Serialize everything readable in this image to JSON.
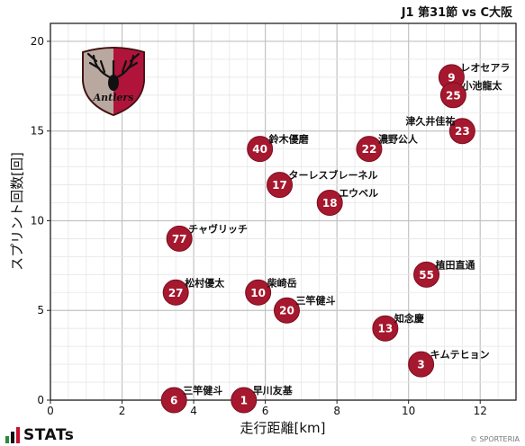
{
  "header": {
    "title": "J1 第31節 vs C大阪"
  },
  "footer": {
    "brand": "STATs",
    "copyright": "© SPORTERIA"
  },
  "colors": {
    "marker": "#a5182e",
    "marker_edge": "#7a0f20",
    "grid": "#d4d4d4",
    "stats_green": "#2a8a3a",
    "stats_red": "#c8102e"
  },
  "logo": {
    "text": "Antlers",
    "icon": "deer-antlers-crest"
  },
  "chart_data": {
    "type": "scatter",
    "xlabel": "走行距離[km]",
    "ylabel": "スプリント回数[回]",
    "xlim": [
      0,
      13
    ],
    "ylim": [
      0,
      21
    ],
    "xticks": [
      0,
      2,
      4,
      6,
      8,
      10,
      12
    ],
    "yticks": [
      0,
      5,
      10,
      15,
      20
    ],
    "grid": true,
    "points": [
      {
        "number": "9",
        "name": "レオセアラ",
        "x": 11.2,
        "y": 18
      },
      {
        "number": "25",
        "name": "小池龍太",
        "x": 11.25,
        "y": 17
      },
      {
        "number": "23",
        "name": "津久井佳祐",
        "x": 11.5,
        "y": 15
      },
      {
        "number": "22",
        "name": "濃野公人",
        "x": 8.9,
        "y": 14
      },
      {
        "number": "40",
        "name": "鈴木優磨",
        "x": 5.85,
        "y": 14
      },
      {
        "number": "17",
        "name": "ターレスブレーネル",
        "x": 6.4,
        "y": 12
      },
      {
        "number": "18",
        "name": "エウベル",
        "x": 7.8,
        "y": 11
      },
      {
        "number": "77",
        "name": "チャヴリッチ",
        "x": 3.6,
        "y": 9
      },
      {
        "number": "55",
        "name": "植田直通",
        "x": 10.5,
        "y": 7
      },
      {
        "number": "27",
        "name": "松村優太",
        "x": 3.5,
        "y": 6
      },
      {
        "number": "10",
        "name": "柴崎岳",
        "x": 5.8,
        "y": 6
      },
      {
        "number": "20",
        "name": "三竿健斗",
        "x": 6.6,
        "y": 5
      },
      {
        "number": "13",
        "name": "知念慶",
        "x": 9.35,
        "y": 4
      },
      {
        "number": "3",
        "name": "キムテヒョン",
        "x": 10.35,
        "y": 2
      },
      {
        "number": "6",
        "name": "三竿健斗",
        "x": 3.45,
        "y": 0
      },
      {
        "number": "1",
        "name": "早川友基",
        "x": 5.4,
        "y": 0
      }
    ]
  }
}
